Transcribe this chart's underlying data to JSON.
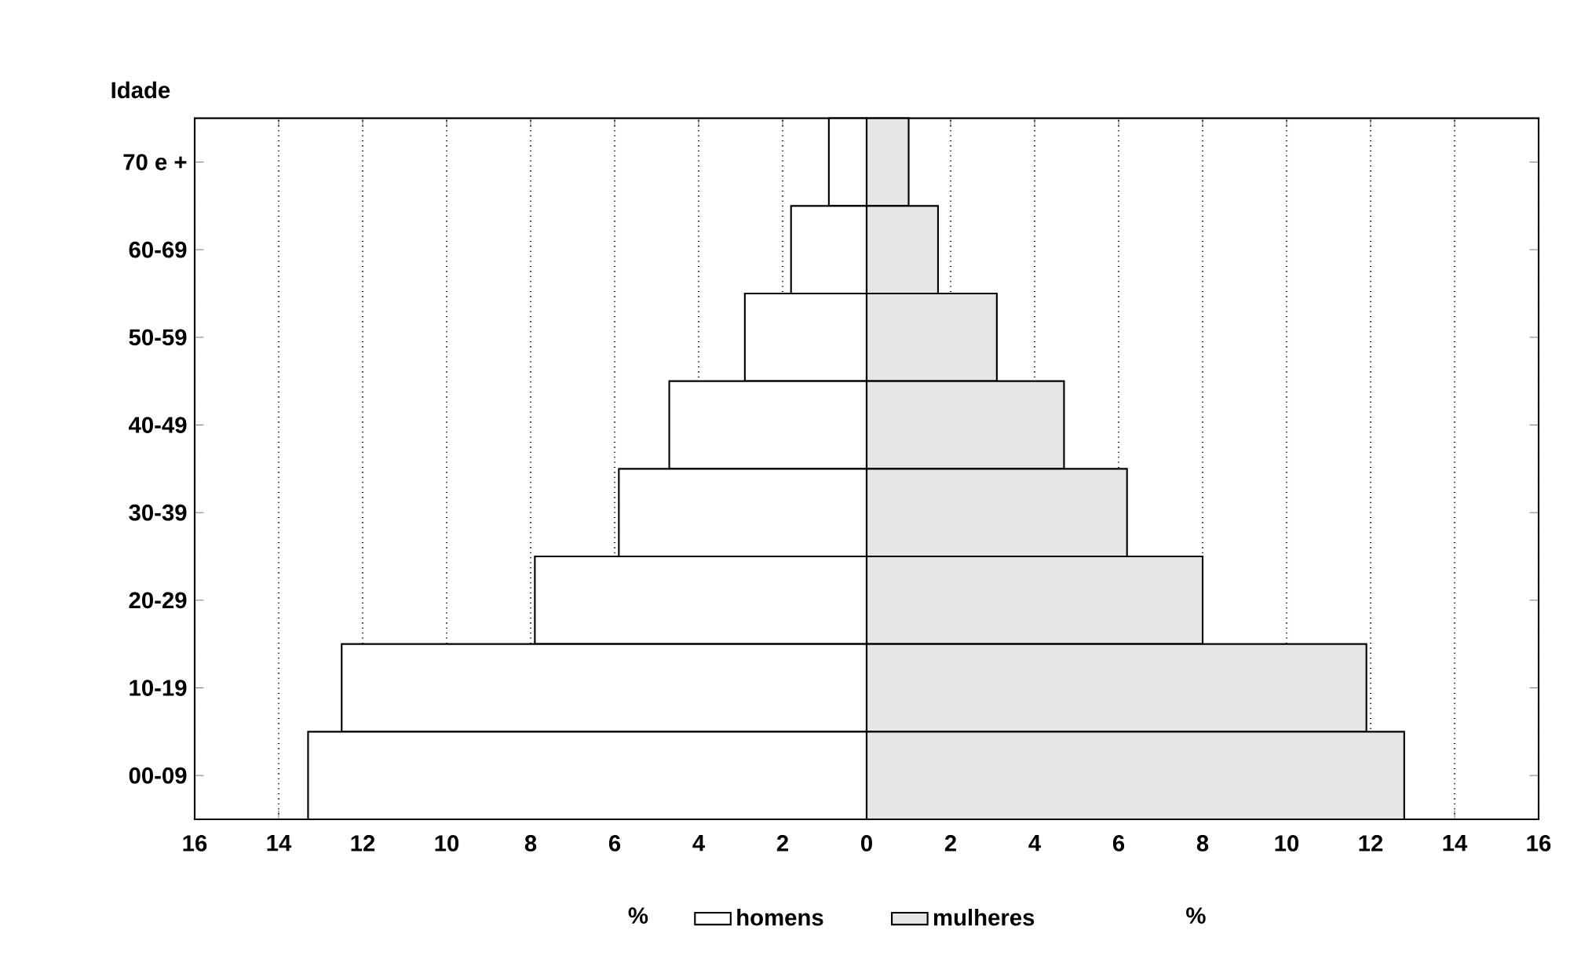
{
  "chart_data": {
    "type": "bar",
    "orientation": "horizontal",
    "ylabel": "Idade",
    "categories": [
      "70 e +",
      "60-69",
      "50-59",
      "40-49",
      "30-39",
      "20-29",
      "10-19",
      "00-09"
    ],
    "series": [
      {
        "name": "homens",
        "color": "#ffffff",
        "values": [
          -0.9,
          -1.8,
          -2.9,
          -4.7,
          -5.9,
          -7.9,
          -12.5,
          -13.3
        ]
      },
      {
        "name": "mulheres",
        "color": "#e6e6e6",
        "values": [
          1.0,
          1.7,
          3.1,
          4.7,
          6.2,
          8.0,
          11.9,
          12.8
        ]
      }
    ],
    "xlim": [
      -16,
      16
    ],
    "xticks": [
      {
        "value": -16,
        "label": "16"
      },
      {
        "value": -14,
        "label": "14"
      },
      {
        "value": -12,
        "label": "12"
      },
      {
        "value": -10,
        "label": "10"
      },
      {
        "value": -8,
        "label": "8"
      },
      {
        "value": -6,
        "label": "6"
      },
      {
        "value": -4,
        "label": "4"
      },
      {
        "value": -2,
        "label": "2"
      },
      0,
      2,
      4,
      6,
      8,
      10,
      12,
      14,
      16
    ],
    "stacked": true,
    "grid": "x",
    "legend": "bottom",
    "annotations": [
      "%",
      "%"
    ]
  }
}
